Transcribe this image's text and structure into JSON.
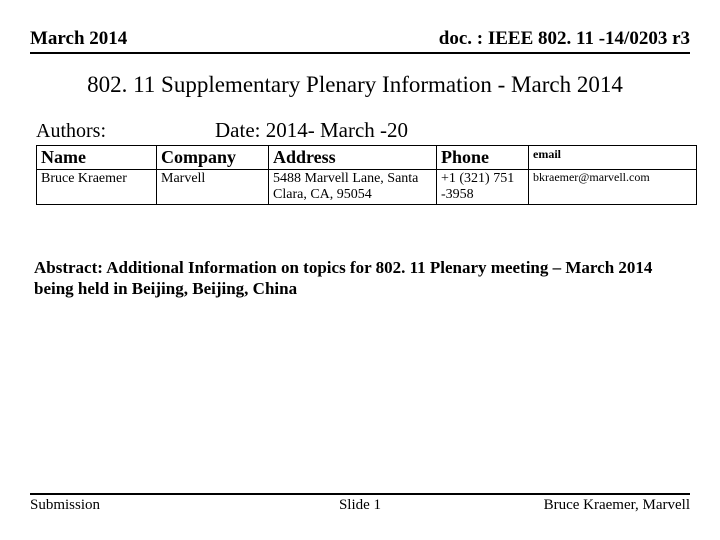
{
  "header": {
    "left": "March 2014",
    "right": "doc. : IEEE 802. 11 -14/0203 r3"
  },
  "title": "802. 11 Supplementary Plenary Information - March 2014",
  "authors_label": "Authors:",
  "date_line": "Date: 2014- March -20",
  "table": {
    "headers": {
      "name": "Name",
      "company": "Company",
      "address": "Address",
      "phone": "Phone",
      "email": "email"
    },
    "row": {
      "name": "Bruce Kraemer",
      "company": "Marvell",
      "address": "5488 Marvell Lane, Santa Clara, CA, 95054",
      "phone": "+1 (321) 751 -3958",
      "email": "bkraemer@marvell.com"
    }
  },
  "abstract": "Abstract: Additional Information on topics for 802. 11 Plenary meeting – March  2014 being held in Beijing, Beijing, China",
  "footer": {
    "left": "Submission",
    "center": "Slide 1",
    "right": "Bruce Kraemer, Marvell"
  }
}
